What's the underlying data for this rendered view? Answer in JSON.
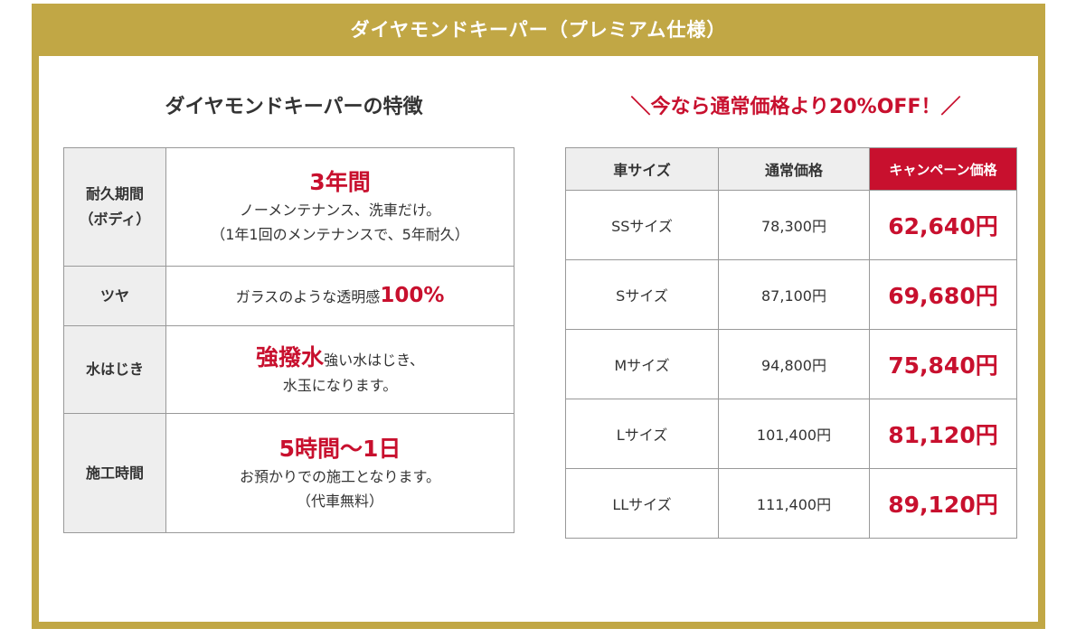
{
  "header": {
    "title": "ダイヤモンドキーパー（プレミアム仕様）"
  },
  "features": {
    "title": "ダイヤモンドキーパーの特徴",
    "rows": [
      {
        "label_line1": "耐久期間",
        "label_line2": "（ボディ）",
        "highlight": "3年間",
        "line1": "ノーメンテナンス、洗車だけ。",
        "line2": "（1年1回のメンテナンスで、5年耐久）"
      },
      {
        "label": "ツヤ",
        "text": "ガラスのような透明感",
        "highlight": "100%"
      },
      {
        "label": "水はじき",
        "highlight": "強撥水",
        "text": "強い水はじき、",
        "line2": "水玉になります。"
      },
      {
        "label": "施工時間",
        "highlight": "5時間〜1日",
        "line1": "お預かりでの施工となります。",
        "line2": "（代車無料）"
      }
    ]
  },
  "pricing": {
    "title": "＼今なら通常価格より20%OFF！／",
    "headers": {
      "size": "車サイズ",
      "normal": "通常価格",
      "campaign": "キャンペーン価格"
    },
    "rows": [
      {
        "size": "SSサイズ",
        "normal": "78,300円",
        "campaign": "62,640円"
      },
      {
        "size": "Sサイズ",
        "normal": "87,100円",
        "campaign": "69,680円"
      },
      {
        "size": "Mサイズ",
        "normal": "94,800円",
        "campaign": "75,840円"
      },
      {
        "size": "Lサイズ",
        "normal": "101,400円",
        "campaign": "81,120円"
      },
      {
        "size": "LLサイズ",
        "normal": "111,400円",
        "campaign": "89,120円"
      }
    ]
  },
  "colors": {
    "gold": "#c1a745",
    "accent_red": "#c8102e",
    "label_bg": "#eeeeee"
  }
}
